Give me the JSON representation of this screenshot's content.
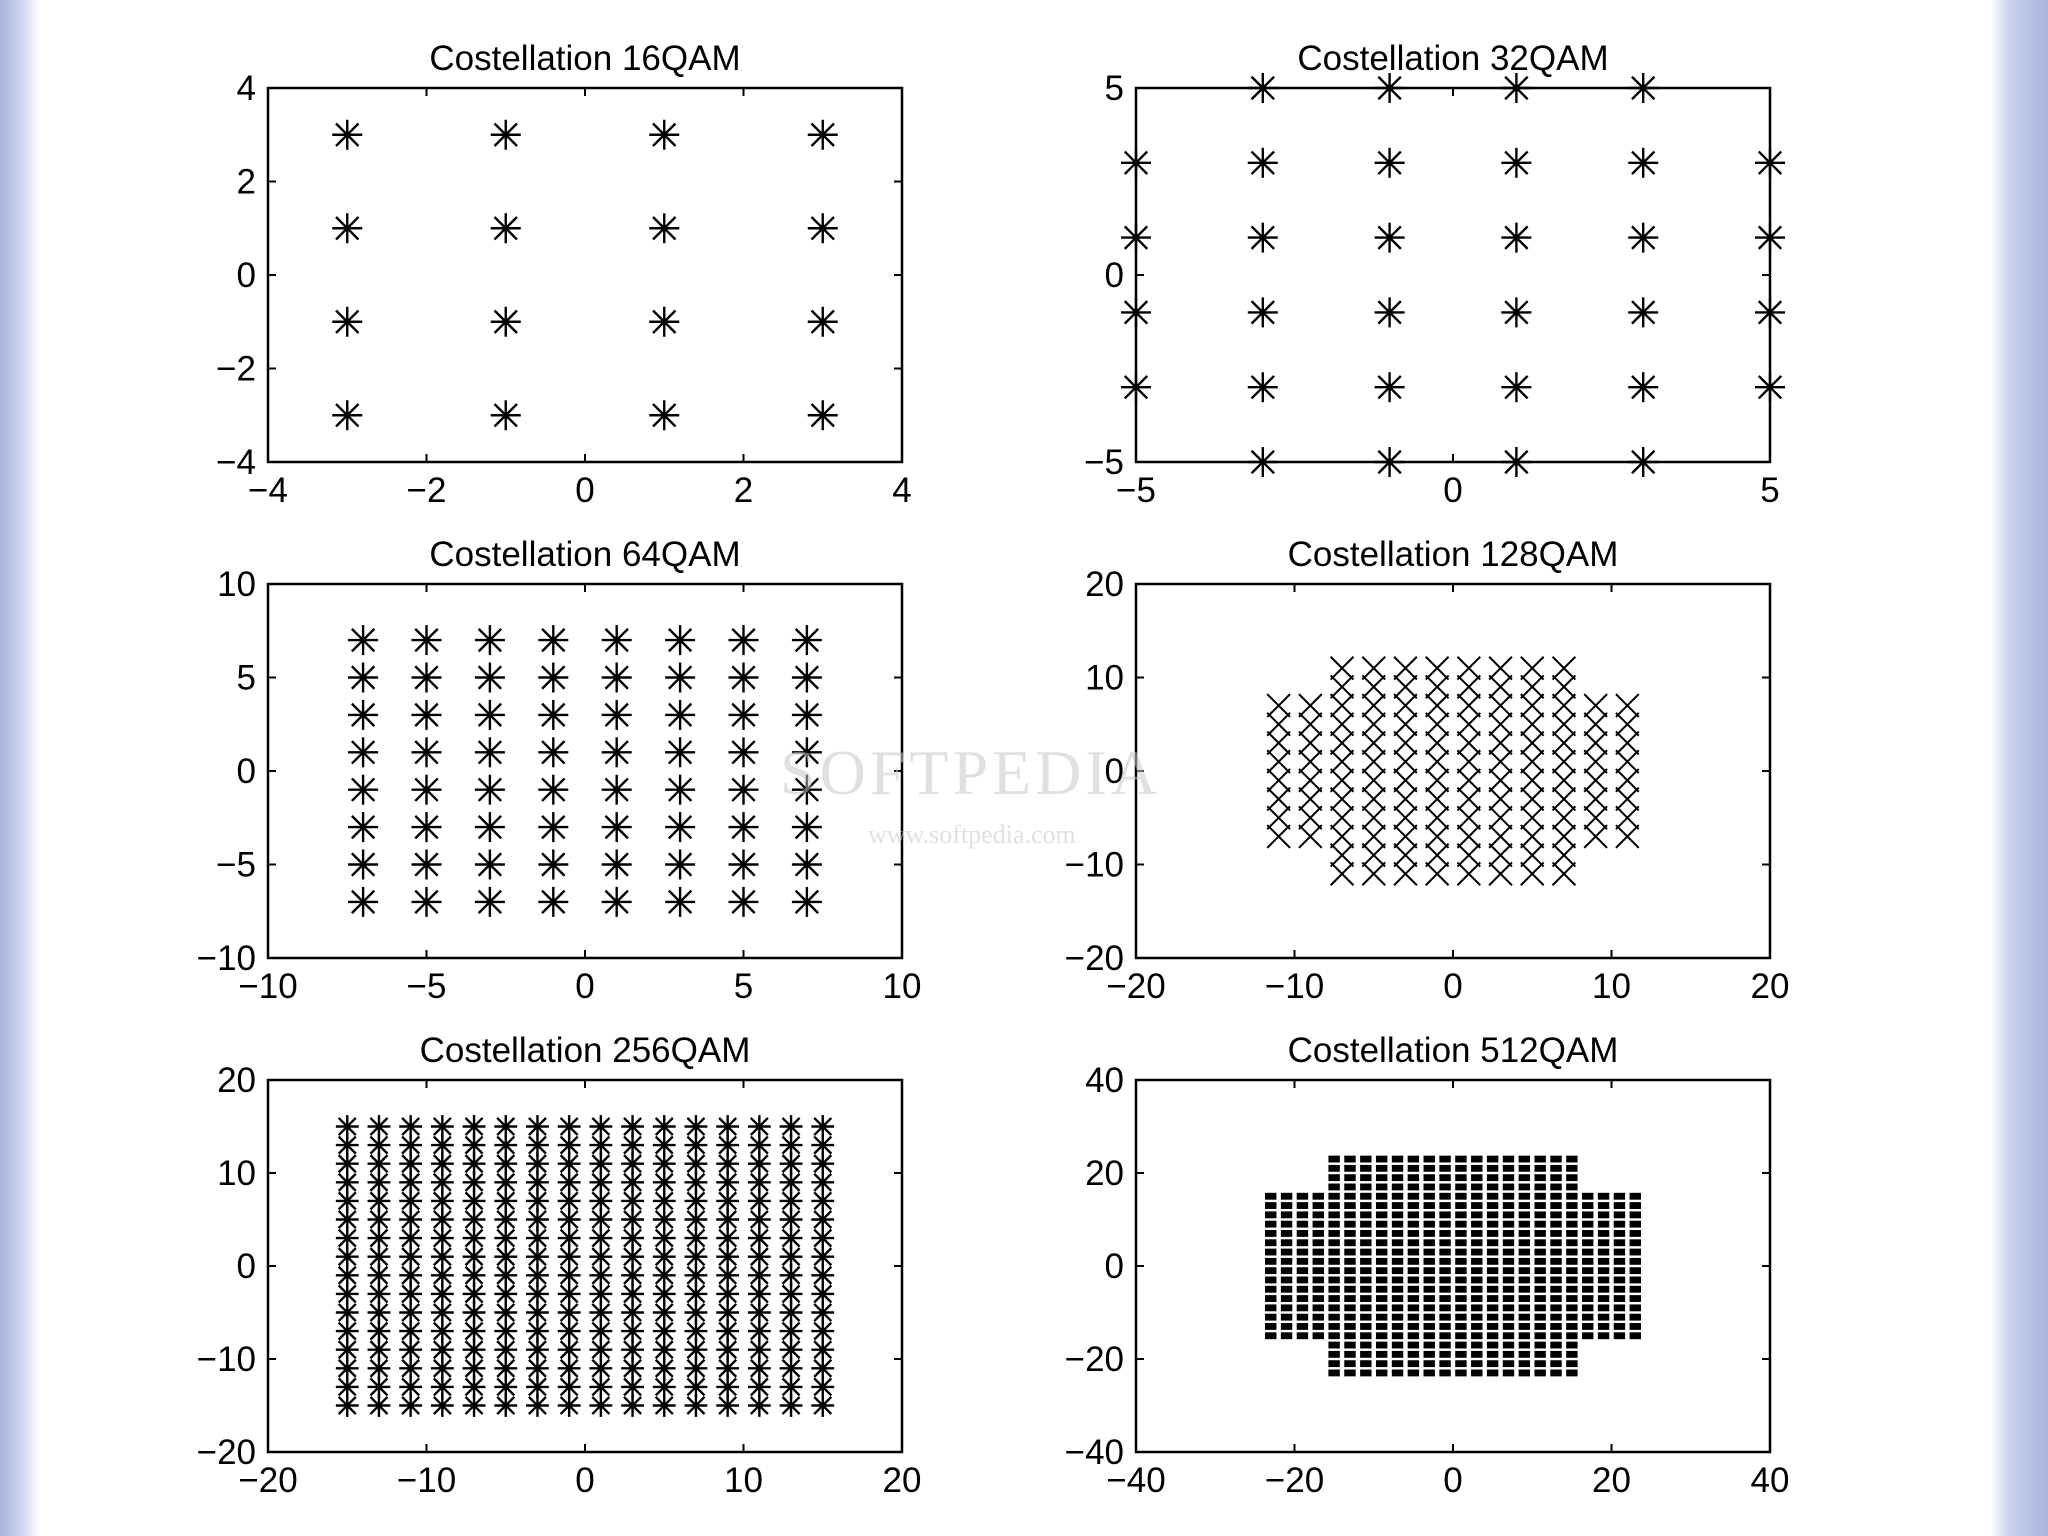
{
  "figure": {
    "watermark": "SOFTPEDIA",
    "watermark_sub": "www.softpedia.com"
  },
  "colors": {
    "marker": "#000000",
    "axes": "#000000",
    "background": "#ffffff"
  },
  "chart_data": [
    {
      "id": "qam16",
      "type": "scatter",
      "title": "Costellation 16QAM",
      "marker": "*",
      "xlim": [
        -4,
        4
      ],
      "ylim": [
        -4,
        4
      ],
      "xticks": [
        -4,
        -2,
        0,
        2,
        4
      ],
      "yticks": [
        -4,
        -2,
        0,
        2,
        4
      ],
      "xlabel": "",
      "ylabel": "",
      "grid": false,
      "points": {
        "generator": "square",
        "levels": [
          -3,
          -1,
          1,
          3
        ]
      }
    },
    {
      "id": "qam32",
      "type": "scatter",
      "title": "Costellation 32QAM",
      "marker": "*",
      "xlim": [
        -5,
        5
      ],
      "ylim": [
        -5,
        5
      ],
      "xticks": [
        -5,
        0,
        5
      ],
      "yticks": [
        -5,
        0,
        5
      ],
      "xlabel": "",
      "ylabel": "",
      "grid": false,
      "points": {
        "generator": "cross",
        "levels": [
          -5,
          -3,
          -1,
          1,
          3,
          5
        ],
        "corner_max": 3
      }
    },
    {
      "id": "qam64",
      "type": "scatter",
      "title": "Costellation 64QAM",
      "marker": "*",
      "xlim": [
        -10,
        10
      ],
      "ylim": [
        -10,
        10
      ],
      "xticks": [
        -10,
        -5,
        0,
        5,
        10
      ],
      "yticks": [
        -10,
        -5,
        0,
        5,
        10
      ],
      "xlabel": "",
      "ylabel": "",
      "grid": false,
      "points": {
        "generator": "square",
        "levels": [
          -7,
          -5,
          -3,
          -1,
          1,
          3,
          5,
          7
        ]
      }
    },
    {
      "id": "qam128",
      "type": "scatter",
      "title": "Costellation 128QAM",
      "marker": "x",
      "xlim": [
        -20,
        20
      ],
      "ylim": [
        -20,
        20
      ],
      "xticks": [
        -20,
        -10,
        0,
        10,
        20
      ],
      "yticks": [
        -20,
        -10,
        0,
        10,
        20
      ],
      "xlabel": "",
      "ylabel": "",
      "grid": false,
      "points": {
        "generator": "cross",
        "levels": [
          -11,
          -9,
          -7,
          -5,
          -3,
          -1,
          1,
          3,
          5,
          7,
          9,
          11
        ],
        "corner_max": 7
      }
    },
    {
      "id": "qam256",
      "type": "scatter",
      "title": "Costellation 256QAM",
      "marker": "*",
      "xlim": [
        -20,
        20
      ],
      "ylim": [
        -20,
        20
      ],
      "xticks": [
        -20,
        -10,
        0,
        10,
        20
      ],
      "yticks": [
        -20,
        -10,
        0,
        10,
        20
      ],
      "xlabel": "",
      "ylabel": "",
      "grid": false,
      "points": {
        "generator": "square",
        "levels": [
          -15,
          -13,
          -11,
          -9,
          -7,
          -5,
          -3,
          -1,
          1,
          3,
          5,
          7,
          9,
          11,
          13,
          15
        ]
      }
    },
    {
      "id": "qam512",
      "type": "scatter",
      "title": "Costellation 512QAM",
      "marker": ".",
      "xlim": [
        -40,
        40
      ],
      "ylim": [
        -40,
        40
      ],
      "xticks": [
        -40,
        -20,
        0,
        20,
        40
      ],
      "yticks": [
        -40,
        -20,
        0,
        20,
        40
      ],
      "xlabel": "",
      "ylabel": "",
      "grid": false,
      "points": {
        "generator": "cross",
        "levels": [
          -23,
          -21,
          -19,
          -17,
          -15,
          -13,
          -11,
          -9,
          -7,
          -5,
          -3,
          -1,
          1,
          3,
          5,
          7,
          9,
          11,
          13,
          15,
          17,
          19,
          21,
          23
        ],
        "corner_max": 15
      }
    }
  ]
}
